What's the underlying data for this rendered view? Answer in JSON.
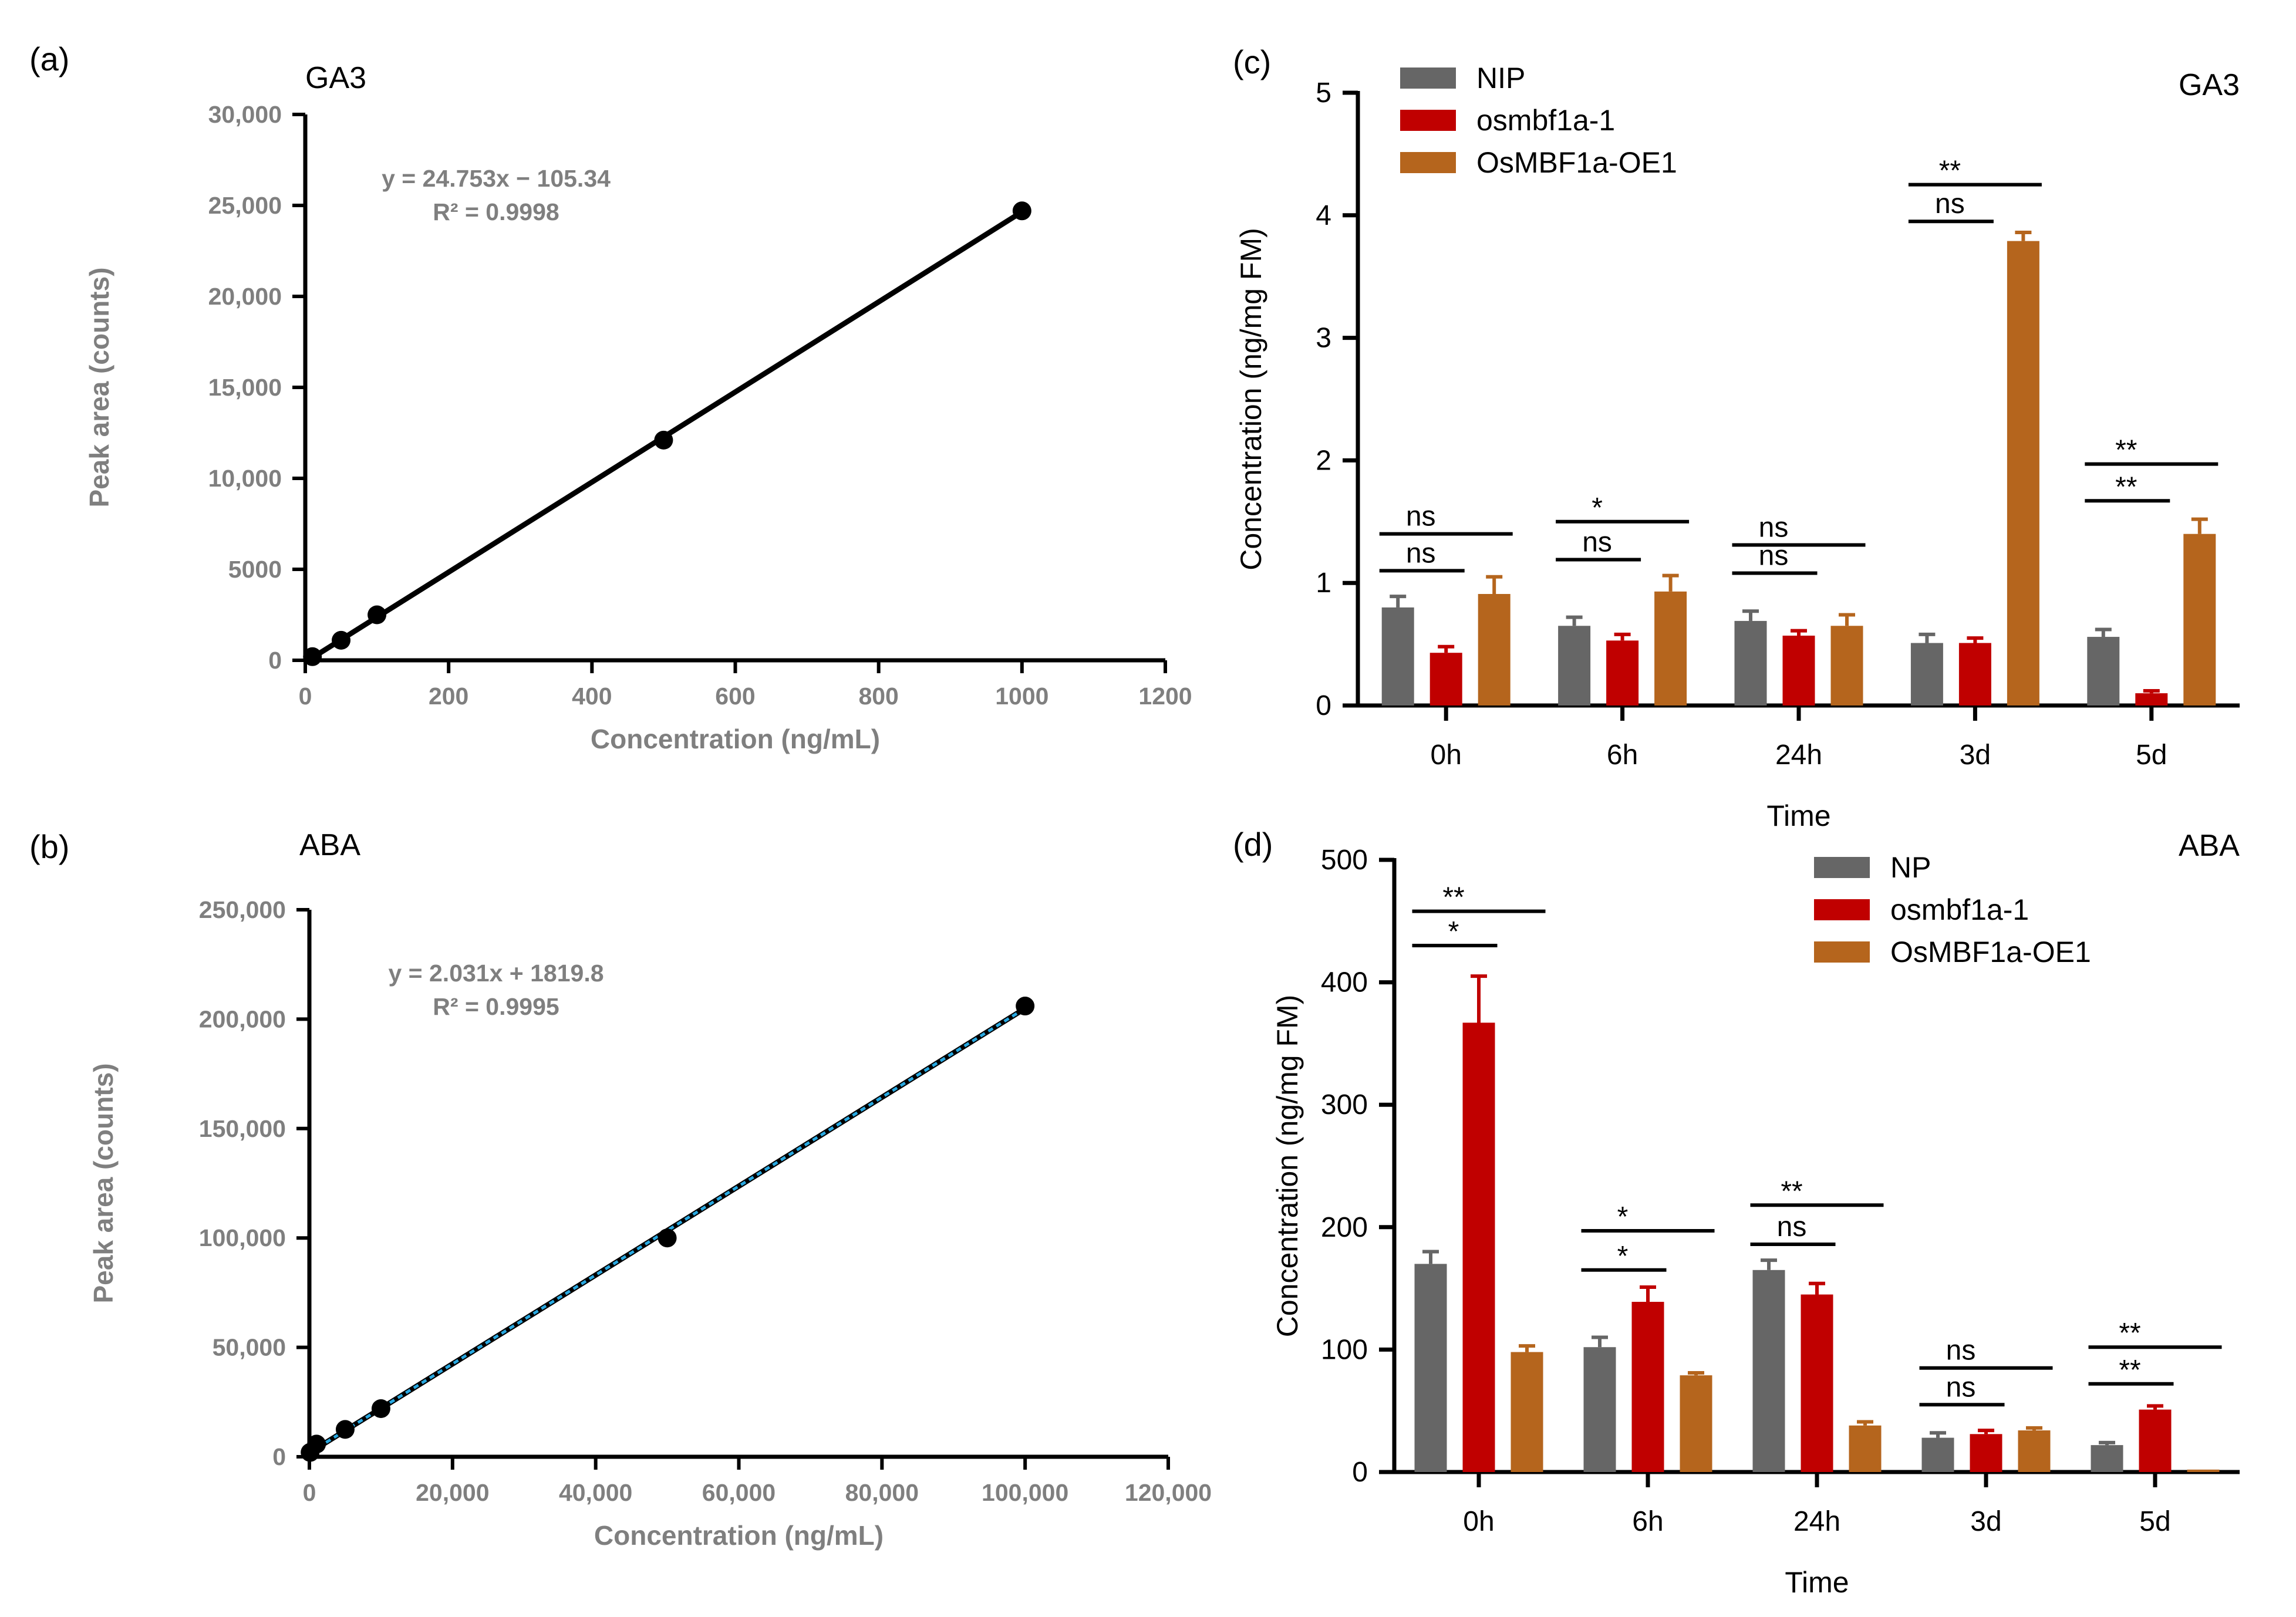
{
  "chart_data": [
    {
      "type": "scatter",
      "panel_label": "(a)",
      "title": "GA3",
      "xlabel": "Concentration (ng/mL)",
      "ylabel": "Peak area (counts)",
      "xlim": [
        0,
        1200
      ],
      "ylim": [
        0,
        30000
      ],
      "x_ticks": [
        0,
        200,
        400,
        600,
        800,
        1000,
        1200
      ],
      "x_tick_labels": [
        "0",
        "200",
        "400",
        "600",
        "800",
        "1000",
        "1200"
      ],
      "y_ticks": [
        0,
        5000,
        10000,
        15000,
        20000,
        25000,
        30000
      ],
      "y_tick_labels": [
        "0",
        "5000",
        "10,000",
        "15,000",
        "20,000",
        "25,000",
        "30,000"
      ],
      "points": [
        {
          "x": 10,
          "y": 200
        },
        {
          "x": 50,
          "y": 1100
        },
        {
          "x": 100,
          "y": 2500
        },
        {
          "x": 500,
          "y": 12100
        },
        {
          "x": 1000,
          "y": 24700
        }
      ],
      "fit": {
        "slope": 24.753,
        "intercept": -105.34
      },
      "equation": "y = 24.753x − 105.34",
      "r_squared": "R² = 0.9998",
      "line_color": "#000000",
      "point_color": "#000000"
    },
    {
      "type": "scatter",
      "panel_label": "(b)",
      "title": "ABA",
      "xlabel": "Concentration (ng/mL)",
      "ylabel": "Peak area (counts)",
      "xlim": [
        0,
        120000
      ],
      "ylim": [
        0,
        250000
      ],
      "x_ticks": [
        0,
        20000,
        40000,
        60000,
        80000,
        100000,
        120000
      ],
      "x_tick_labels": [
        "0",
        "20,000",
        "40,000",
        "60,000",
        "80,000",
        "100,000",
        "120,000"
      ],
      "y_ticks": [
        0,
        50000,
        100000,
        150000,
        200000,
        250000
      ],
      "y_tick_labels": [
        "0",
        "50,000",
        "100,000",
        "150,000",
        "200,000",
        "250,000"
      ],
      "points": [
        {
          "x": 100,
          "y": 2000
        },
        {
          "x": 1000,
          "y": 5800
        },
        {
          "x": 5000,
          "y": 12500
        },
        {
          "x": 10000,
          "y": 22000
        },
        {
          "x": 50000,
          "y": 100000
        },
        {
          "x": 100000,
          "y": 206000
        }
      ],
      "fit": {
        "slope": 2.031,
        "intercept": 1819.8
      },
      "equation": "y = 2.031x + 1819.8",
      "r_squared": "R² = 0.9995",
      "line_color": "#000000",
      "dash_color": "#29a8e0",
      "point_color": "#000000"
    },
    {
      "type": "bar",
      "panel_label": "(c)",
      "title": "GA3",
      "xlabel": "Time",
      "ylabel": "Concentration (ng/mg FM)",
      "ylim": [
        0,
        5
      ],
      "y_ticks": [
        0,
        1,
        2,
        3,
        4,
        5
      ],
      "y_tick_labels": [
        "0",
        "1",
        "2",
        "3",
        "4",
        "5"
      ],
      "categories": [
        "0h",
        "6h",
        "24h",
        "3d",
        "5d"
      ],
      "series": [
        {
          "name": "NIP",
          "color": "#666666",
          "values": [
            0.8,
            0.65,
            0.69,
            0.51,
            0.56
          ],
          "errors": [
            0.09,
            0.07,
            0.08,
            0.07,
            0.06
          ]
        },
        {
          "name": "osmbf1a-1",
          "color": "#c00000",
          "values": [
            0.43,
            0.53,
            0.57,
            0.51,
            0.1
          ],
          "errors": [
            0.05,
            0.05,
            0.04,
            0.04,
            0.02
          ]
        },
        {
          "name": "OsMBF1a-OE1",
          "color": "#b5651d",
          "values": [
            0.91,
            0.93,
            0.65,
            3.79,
            1.4
          ],
          "errors": [
            0.14,
            0.13,
            0.09,
            0.07,
            0.12
          ]
        }
      ],
      "significance": [
        {
          "group": 0,
          "from": 0,
          "to": 1,
          "level": 1.1,
          "label": "ns"
        },
        {
          "group": 0,
          "from": 0,
          "to": 2,
          "level": 1.4,
          "label": "ns"
        },
        {
          "group": 1,
          "from": 0,
          "to": 1,
          "level": 1.19,
          "label": "ns"
        },
        {
          "group": 1,
          "from": 0,
          "to": 2,
          "level": 1.5,
          "label": "*"
        },
        {
          "group": 2,
          "from": 0,
          "to": 1,
          "level": 1.08,
          "label": "ns"
        },
        {
          "group": 2,
          "from": 0,
          "to": 2,
          "level": 1.31,
          "label": "ns"
        },
        {
          "group": 3,
          "from": 0,
          "to": 1,
          "level": 3.95,
          "label": "ns"
        },
        {
          "group": 3,
          "from": 0,
          "to": 2,
          "level": 4.25,
          "label": "**"
        },
        {
          "group": 4,
          "from": 0,
          "to": 1,
          "level": 1.67,
          "label": "**"
        },
        {
          "group": 4,
          "from": 0,
          "to": 2,
          "level": 1.97,
          "label": "**"
        }
      ]
    },
    {
      "type": "bar",
      "panel_label": "(d)",
      "title": "ABA",
      "xlabel": "Time",
      "ylabel": "Concentration (ng/mg FM)",
      "ylim": [
        0,
        500
      ],
      "y_ticks": [
        0,
        100,
        200,
        300,
        400,
        500
      ],
      "y_tick_labels": [
        "0",
        "100",
        "200",
        "300",
        "400",
        "500"
      ],
      "categories": [
        "0h",
        "6h",
        "24h",
        "3d",
        "5d"
      ],
      "series": [
        {
          "name": "NP",
          "color": "#666666",
          "values": [
            170,
            102,
            165,
            28,
            22
          ],
          "errors": [
            10,
            8,
            8,
            4,
            2
          ]
        },
        {
          "name": "osmbf1a-1",
          "color": "#c00000",
          "values": [
            367,
            139,
            145,
            31,
            51
          ],
          "errors": [
            38,
            12,
            9,
            3,
            3
          ]
        },
        {
          "name": "OsMBF1a-OE1",
          "color": "#b5651d",
          "values": [
            98,
            79,
            38,
            34,
            2
          ],
          "errors": [
            5,
            2,
            3,
            2,
            0
          ]
        }
      ],
      "significance": [
        {
          "group": 0,
          "from": 0,
          "to": 1,
          "level": 430,
          "label": "*"
        },
        {
          "group": 0,
          "from": 0,
          "to": 2,
          "level": 458,
          "label": "**"
        },
        {
          "group": 1,
          "from": 0,
          "to": 1,
          "level": 165,
          "label": "*"
        },
        {
          "group": 1,
          "from": 0,
          "to": 2,
          "level": 197,
          "label": "*"
        },
        {
          "group": 2,
          "from": 0,
          "to": 1,
          "level": 186,
          "label": "ns"
        },
        {
          "group": 2,
          "from": 0,
          "to": 2,
          "level": 218,
          "label": "**"
        },
        {
          "group": 3,
          "from": 0,
          "to": 1,
          "level": 55,
          "label": "ns"
        },
        {
          "group": 3,
          "from": 0,
          "to": 2,
          "level": 85,
          "label": "ns"
        },
        {
          "group": 4,
          "from": 0,
          "to": 1,
          "level": 72,
          "label": "**"
        },
        {
          "group": 4,
          "from": 0,
          "to": 2,
          "level": 102,
          "label": "**"
        }
      ]
    }
  ]
}
